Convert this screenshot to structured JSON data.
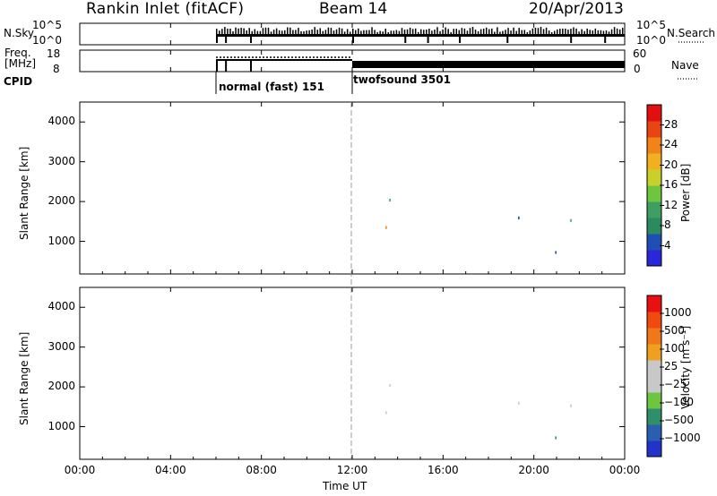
{
  "header": {
    "title": "Rankin Inlet (fitACF)",
    "beam": "Beam 14",
    "date": "20/Apr/2013"
  },
  "top_panels": {
    "nsky_label": "N.Sky",
    "nsearch_label": "N.Search",
    "nsky_ticks": [
      "10^5",
      "10^0"
    ],
    "nsearch_ticks": [
      "10^5",
      "10^0"
    ],
    "freq_label_1": "Freq.",
    "freq_label_2": "[MHz]",
    "freq_ticks": [
      "18",
      "8"
    ],
    "nave_label": "Nave",
    "nave_ticks": [
      "60",
      "0"
    ],
    "cpid_label": "CPID",
    "modes": [
      {
        "name": "normal (fast) 151",
        "start_h": 6.0,
        "end_h": 12.0
      },
      {
        "name": "twofsound 3501",
        "start_h": 12.0,
        "end_h": 24.0
      }
    ]
  },
  "chart_data": [
    {
      "type": "heatmap",
      "name": "power",
      "ylabel": "Slant Range [km]",
      "ylim": [
        180,
        4500
      ],
      "yticks": [
        "1000",
        "2000",
        "3000",
        "4000"
      ],
      "xlim": [
        0,
        24
      ],
      "colorbar": {
        "label": "Power [dB]",
        "ticks": [
          "4",
          "8",
          "12",
          "16",
          "20",
          "24",
          "28"
        ],
        "colors": [
          "#2a26d9",
          "#1f4fb5",
          "#2b8a5e",
          "#3f9f62",
          "#6ec640",
          "#c8d12a",
          "#f0b020",
          "#f08418",
          "#e84414",
          "#e01010"
        ]
      }
    },
    {
      "type": "heatmap",
      "name": "velocity",
      "ylabel": "Slant Range [km]",
      "xlabel": "Time UT",
      "ylim": [
        180,
        4500
      ],
      "yticks": [
        "1000",
        "2000",
        "3000",
        "4000"
      ],
      "xlim": [
        0,
        24
      ],
      "xticks": [
        "00:00",
        "04:00",
        "08:00",
        "12:00",
        "16:00",
        "20:00",
        "00:00"
      ],
      "colorbar": {
        "label": "Velocity [m s⁻¹]",
        "ticks": [
          "1000",
          "500",
          "100",
          "25",
          "−25",
          "−100",
          "−500",
          "−1000"
        ],
        "colors": [
          "#2233cc",
          "#2a5fb0",
          "#2f8f6a",
          "#6ec640",
          "#c8c8c8",
          "#c8c8c8",
          "#f0a020",
          "#f07818",
          "#f04a10",
          "#e81010"
        ]
      }
    }
  ]
}
